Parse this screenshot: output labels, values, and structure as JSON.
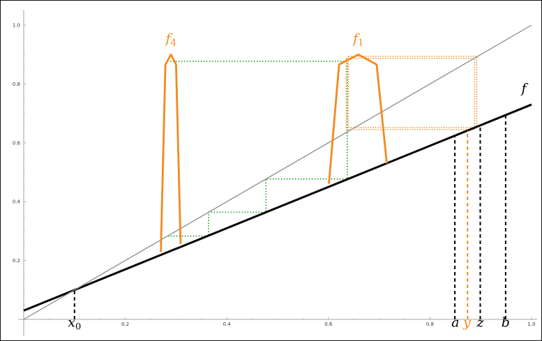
{
  "chart_data": {
    "type": "line",
    "title": "",
    "xlabel": "",
    "ylabel": "",
    "xlim": [
      0,
      1.0
    ],
    "ylim": [
      0,
      1.05
    ],
    "grid": false,
    "x_ticks": [
      "0.2",
      "0.4",
      "0.6",
      "0.8",
      "1.0"
    ],
    "y_ticks": [
      "0.2",
      "0.4",
      "0.6",
      "0.8",
      "1.0"
    ],
    "colors": {
      "axis": "#888888",
      "f": "#000000",
      "diagonal": "#8a8a8a",
      "bumps": "#f28a1e",
      "green_path": "#2ca02c",
      "orange_path": "#f28a1e"
    },
    "series": [
      {
        "name": "f",
        "color": "#000000",
        "x": [
          0.0,
          1.0
        ],
        "y": [
          0.03,
          0.73
        ]
      },
      {
        "name": "",
        "color": "#8a8a8a",
        "x": [
          0.0,
          1.0
        ],
        "y": [
          0.0,
          1.0
        ]
      },
      {
        "name": "f4",
        "color": "#f28a1e",
        "x": [
          0.27,
          0.279,
          0.29,
          0.3,
          0.309
        ],
        "y": [
          0.229,
          0.866,
          0.9,
          0.866,
          0.256
        ]
      },
      {
        "name": "f1",
        "color": "#f28a1e",
        "x": [
          0.601,
          0.621,
          0.659,
          0.695,
          0.715
        ],
        "y": [
          0.461,
          0.866,
          0.9,
          0.866,
          0.53
        ]
      }
    ],
    "green_dotted_path": {
      "x": [
        0.284,
        0.284,
        0.364,
        0.364,
        0.477,
        0.477,
        0.637,
        0.637,
        0.637,
        0.284
      ],
      "y": [
        0.283,
        0.283,
        0.283,
        0.364,
        0.364,
        0.477,
        0.477,
        0.637,
        0.877,
        0.877
      ]
    },
    "orange_dotted_box": {
      "x": [
        0.635,
        0.888
      ],
      "y": [
        0.645,
        0.887
      ]
    },
    "annotations": [
      {
        "text": "f",
        "sub": "4",
        "x": 0.29,
        "y": 0.94,
        "color": "#f28a1e"
      },
      {
        "text": "f",
        "sub": "1",
        "x": 0.659,
        "y": 0.94,
        "color": "#f28a1e"
      },
      {
        "text": "f",
        "sub": "",
        "x": 0.985,
        "y": 0.77,
        "color": "#000000"
      },
      {
        "text": "x",
        "sub": "0",
        "x": 0.1,
        "y": -0.025,
        "color": "#000000"
      },
      {
        "text": "a",
        "sub": "",
        "x": 0.85,
        "y": -0.025,
        "color": "#000000"
      },
      {
        "text": "y",
        "sub": "",
        "x": 0.873,
        "y": -0.025,
        "color": "#f28a1e"
      },
      {
        "text": "z",
        "sub": "",
        "x": 0.899,
        "y": -0.025,
        "color": "#000000"
      },
      {
        "text": "b",
        "sub": "",
        "x": 0.949,
        "y": -0.025,
        "color": "#000000"
      }
    ],
    "vertical_markers": [
      {
        "x": 0.1,
        "color": "#000000"
      },
      {
        "x": 0.849,
        "color": "#000000"
      },
      {
        "x": 0.874,
        "color": "#f28a1e"
      },
      {
        "x": 0.899,
        "color": "#000000"
      },
      {
        "x": 0.949,
        "color": "#000000"
      }
    ]
  }
}
